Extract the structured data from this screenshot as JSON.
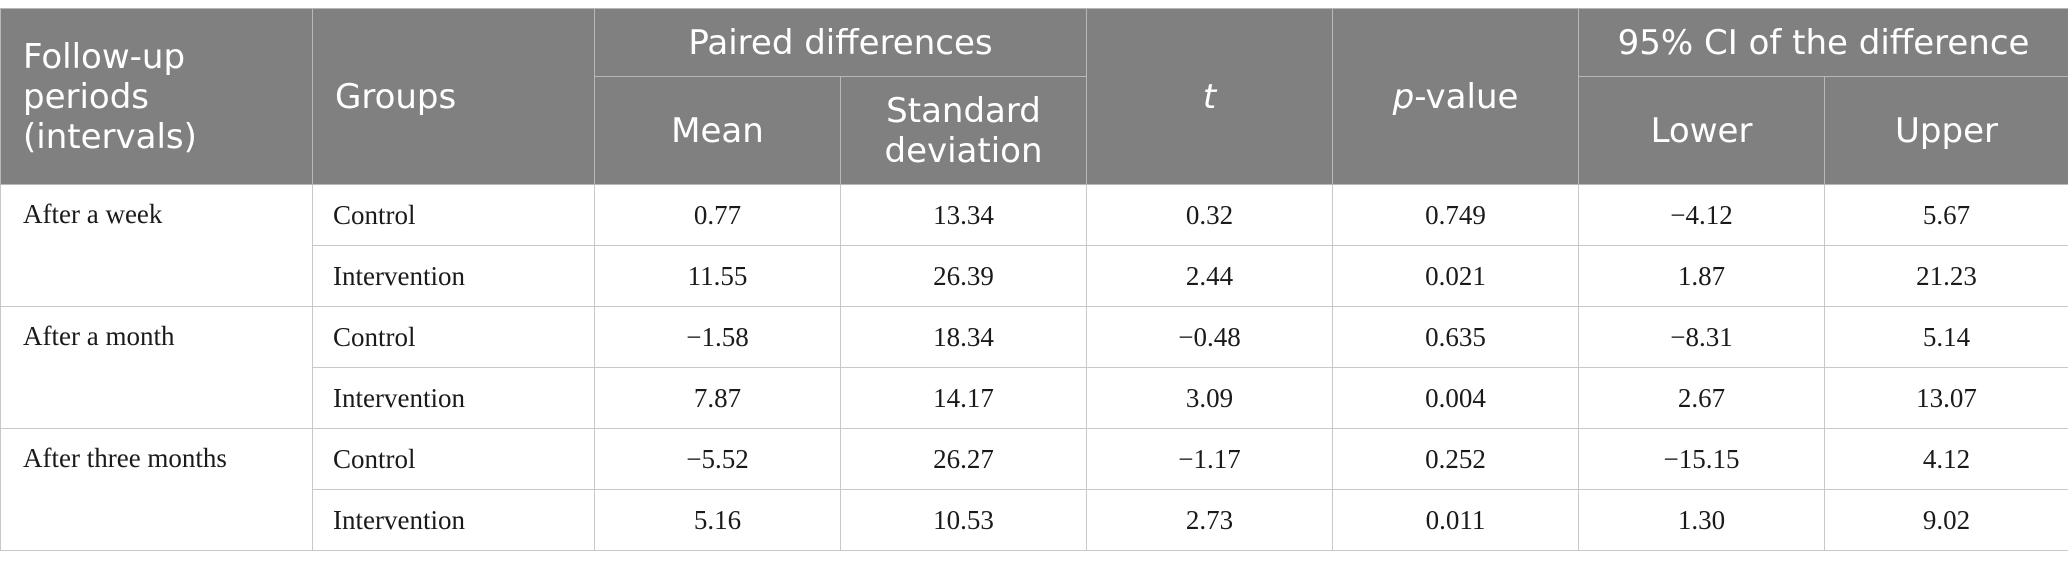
{
  "headers": {
    "follow_up": "Follow-up periods (intervals)",
    "groups": "Groups",
    "paired_differences": "Paired differences",
    "mean": "Mean",
    "sd": "Standard deviation",
    "t": "t",
    "p_italic": "p",
    "p_rest": "-value",
    "ci": "95% CI of the difference",
    "lower": "Lower",
    "upper": "Upper"
  },
  "periods": [
    {
      "label": "After a week",
      "rows": [
        {
          "group": "Control",
          "mean": "0.77",
          "sd": "13.34",
          "t": "0.32",
          "p": "0.749",
          "lower": "−4.12",
          "upper": "5.67"
        },
        {
          "group": "Intervention",
          "mean": "11.55",
          "sd": "26.39",
          "t": "2.44",
          "p": "0.021",
          "lower": "1.87",
          "upper": "21.23"
        }
      ]
    },
    {
      "label": "After a month",
      "rows": [
        {
          "group": "Control",
          "mean": "−1.58",
          "sd": "18.34",
          "t": "−0.48",
          "p": "0.635",
          "lower": "−8.31",
          "upper": "5.14"
        },
        {
          "group": "Intervention",
          "mean": "7.87",
          "sd": "14.17",
          "t": "3.09",
          "p": "0.004",
          "lower": "2.67",
          "upper": "13.07"
        }
      ]
    },
    {
      "label": "After three months",
      "rows": [
        {
          "group": "Control",
          "mean": "−5.52",
          "sd": "26.27",
          "t": "−1.17",
          "p": "0.252",
          "lower": "−15.15",
          "upper": "4.12"
        },
        {
          "group": "Intervention",
          "mean": "5.16",
          "sd": "10.53",
          "t": "2.73",
          "p": "0.011",
          "lower": "1.30",
          "upper": "9.02"
        }
      ]
    }
  ]
}
